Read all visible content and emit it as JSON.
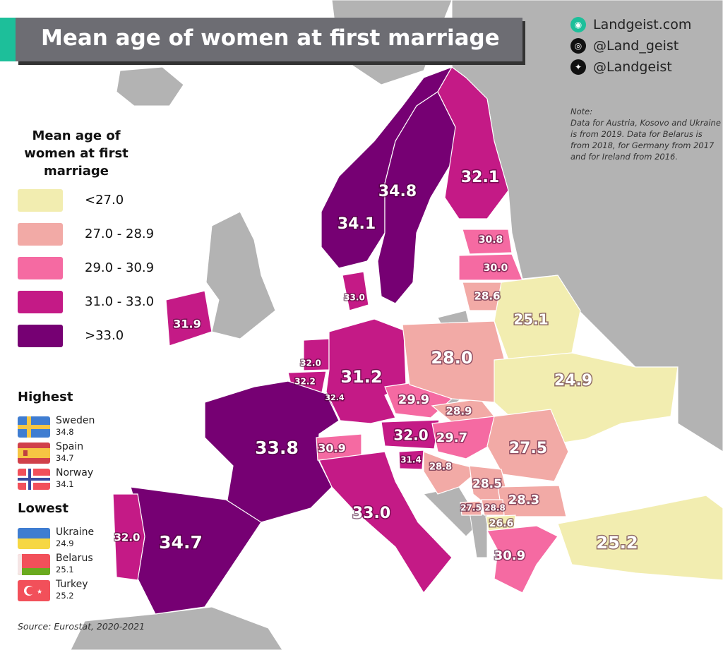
{
  "title": "Mean age of women at first marriage",
  "social": {
    "site": "Landgeist.com",
    "instagram": "@Land_geist",
    "twitter": "@Landgeist"
  },
  "note": {
    "heading": "Note:",
    "text": "Data for Austria, Kosovo and Ukraine is from 2019. Data for Belarus is from 2018, for Germany from 2017 and for Ireland from 2016."
  },
  "legend": {
    "title": "Mean age of women at first marriage",
    "items": [
      {
        "label": "<27.0",
        "color": "#f2edb0"
      },
      {
        "label": "27.0 - 28.9",
        "color": "#f2aaa6"
      },
      {
        "label": "29.0 - 30.9",
        "color": "#f56aa2"
      },
      {
        "label": "31.0 - 33.0",
        "color": "#c41a86"
      },
      {
        "label": ">33.0",
        "color": "#760073"
      }
    ]
  },
  "highest": {
    "title": "Highest",
    "items": [
      {
        "name": "Sweden",
        "value": "34.8",
        "flag": "sweden-flag"
      },
      {
        "name": "Spain",
        "value": "34.7",
        "flag": "spain-flag"
      },
      {
        "name": "Norway",
        "value": "34.1",
        "flag": "norway-flag"
      }
    ]
  },
  "lowest": {
    "title": "Lowest",
    "items": [
      {
        "name": "Ukraine",
        "value": "24.9",
        "flag": "ukraine-flag"
      },
      {
        "name": "Belarus",
        "value": "25.1",
        "flag": "belarus-flag"
      },
      {
        "name": "Turkey",
        "value": "25.2",
        "flag": "turkey-flag"
      }
    ]
  },
  "source": "Source: Eurostat, 2020-2021",
  "colors": {
    "no_data": "#b3b3b3",
    "sea": "#ffffff"
  },
  "map": {
    "regions": [
      {
        "value": "34.1",
        "class": 4
      },
      {
        "value": "34.8",
        "class": 4
      },
      {
        "value": "32.1",
        "class": 3
      },
      {
        "value": "30.8",
        "class": 2
      },
      {
        "value": "30.0",
        "class": 2
      },
      {
        "value": "28.6",
        "class": 1
      },
      {
        "value": "33.0",
        "class": 3
      },
      {
        "value": "31.9",
        "class": 3
      },
      {
        "value": "32.0",
        "class": 3
      },
      {
        "value": "32.2",
        "class": 3
      },
      {
        "value": "32.4",
        "class": 3
      },
      {
        "value": "31.2",
        "class": 3
      },
      {
        "value": "33.8",
        "class": 4
      },
      {
        "value": "34.7",
        "class": 4
      },
      {
        "value": "32.0",
        "class": 3
      },
      {
        "value": "30.9",
        "class": 2
      },
      {
        "value": "32.0",
        "class": 3
      },
      {
        "value": "33.0",
        "class": 3
      },
      {
        "value": "31.4",
        "class": 3
      },
      {
        "value": "28.8",
        "class": 1
      },
      {
        "value": "29.9",
        "class": 2
      },
      {
        "value": "28.9",
        "class": 1
      },
      {
        "value": "29.7",
        "class": 2
      },
      {
        "value": "28.0",
        "class": 1
      },
      {
        "value": "25.1",
        "class": 0
      },
      {
        "value": "24.9",
        "class": 0
      },
      {
        "value": "27.5",
        "class": 1
      },
      {
        "value": "28.5",
        "class": 1
      },
      {
        "value": "28.3",
        "class": 1
      },
      {
        "value": "27.5",
        "class": 1
      },
      {
        "value": "28.8",
        "class": 1
      },
      {
        "value": "26.6",
        "class": 0
      },
      {
        "value": "30.9",
        "class": 2
      },
      {
        "value": "25.2",
        "class": 0
      }
    ]
  }
}
